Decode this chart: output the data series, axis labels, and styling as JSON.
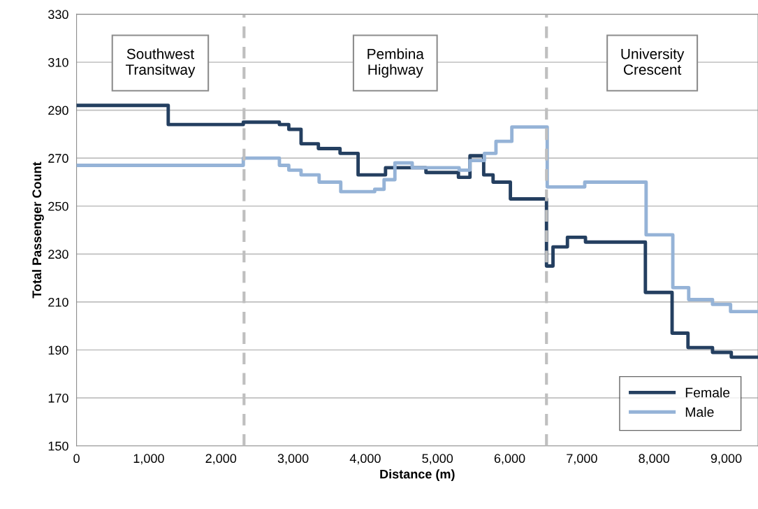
{
  "chart_data": {
    "type": "step",
    "xlabel": "Distance (m)",
    "ylabel": "Total Passenger Count",
    "xlim": [
      0,
      9440
    ],
    "ylim": [
      150,
      330
    ],
    "xticks": [
      0,
      {
        "value": 1000,
        "label": "1,000"
      },
      {
        "value": 2000,
        "label": "2,000"
      },
      {
        "value": 3000,
        "label": "3,000"
      },
      {
        "value": 4000,
        "label": "4,000"
      },
      {
        "value": 5000,
        "label": "5,000"
      },
      {
        "value": 6000,
        "label": "6,000"
      },
      {
        "value": 7000,
        "label": "7,000"
      },
      {
        "value": 8000,
        "label": "8,000"
      },
      {
        "value": 9000,
        "label": "9,000"
      }
    ],
    "yticks": [
      150,
      170,
      190,
      210,
      230,
      250,
      270,
      290,
      310,
      330
    ],
    "grid": "y",
    "legend": "bottom right",
    "line_style": "solid",
    "marker": "none",
    "series": [
      {
        "name": "Female",
        "color": "#243f60",
        "x": [
          0,
          1270,
          2310,
          2810,
          2940,
          3110,
          3350,
          3650,
          3900,
          4280,
          4840,
          5290,
          5450,
          5640,
          5770,
          6010,
          6510,
          6600,
          6800,
          7050,
          7880,
          8250,
          8470,
          8810,
          9070,
          9440
        ],
        "values": [
          292,
          284,
          285,
          284,
          282,
          276,
          274,
          272,
          263,
          266,
          264,
          262,
          271,
          263,
          260,
          253,
          225,
          233,
          237,
          235,
          214,
          197,
          191,
          189,
          187,
          187
        ]
      },
      {
        "name": "Male",
        "color": "#95b3d7",
        "x": [
          0,
          2310,
          2810,
          2940,
          3110,
          3360,
          3660,
          4130,
          4260,
          4410,
          4650,
          5300,
          5450,
          5650,
          5810,
          6030,
          6520,
          7040,
          7890,
          8260,
          8480,
          8810,
          9060,
          9440
        ],
        "values": [
          267,
          270,
          267,
          265,
          263,
          260,
          256,
          257,
          261,
          268,
          266,
          265,
          269,
          272,
          277,
          283,
          258,
          260,
          238,
          216,
          211,
          209,
          206,
          206
        ]
      }
    ],
    "ref_lines": [
      {
        "axis": "x",
        "value": 2320,
        "color": "#bfbfbf",
        "line_style": "dashed"
      },
      {
        "axis": "x",
        "value": 6510,
        "color": "#bfbfbf",
        "line_style": "dashed"
      }
    ],
    "annotations": [
      "Southwest\nTransitway",
      "Pembina\nHighway",
      "University\nCrescent"
    ]
  }
}
